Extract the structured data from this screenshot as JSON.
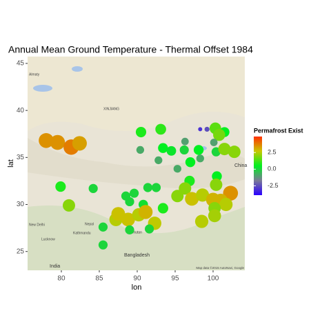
{
  "chart_data": {
    "type": "scatter",
    "title": "Annual Mean Ground Temperature - Thermal Offset   1984",
    "xlabel": "lon",
    "ylabel": "lat",
    "xlim": [
      75.55,
      104.18
    ],
    "ylim": [
      23.0,
      45.73
    ],
    "xticks": [
      80,
      85,
      90,
      95,
      100
    ],
    "yticks": [
      25,
      30,
      35,
      40,
      45
    ],
    "map_labels": [
      "XINJIANG",
      "Almaty",
      "Nepal",
      "Kathmandu",
      "New Delhi",
      "Lucknow",
      "Bhutan",
      "Bangladesh",
      "India",
      "China",
      "Map data ©2015 AutoNavi, Google"
    ],
    "colorbar": {
      "title": "Permafrost Exist",
      "lim": [
        -3.9,
        4.9
      ],
      "ticks": [
        2.5,
        {
          "value": 0,
          "label": "0.0"
        },
        -2.5
      ],
      "colors": [
        "#2a00ff",
        "#7a7a96",
        "#00f020",
        "#c8c800",
        "#ff3000"
      ]
    },
    "series": [
      {
        "name": "Thermal Offset",
        "x": [
          78.0,
          79.5,
          81.3,
          82.4,
          90.5,
          93.1,
          98.3,
          99.2,
          100.3,
          101.5,
          100.8,
          100.1,
          96.3,
          93.4,
          94.5,
          96.2,
          98.1,
          100.4,
          101.5,
          102.8,
          90.4,
          92.8,
          98.3,
          95.3,
          97.0,
          96.9,
          100.5,
          100.4,
          102.3,
          96.3,
          95.3,
          97.2,
          98.6,
          100.0,
          101.0,
          101.7,
          100.2,
          98.5,
          100.2,
          93.4,
          92.5,
          91.4,
          89.6,
          89.0,
          90.8,
          88.5,
          79.9,
          81.0,
          84.2,
          87.2,
          87.5,
          88.8,
          90.2,
          91.1,
          92.3,
          89.0,
          91.6,
          85.5,
          85.5
        ],
        "y": [
          36.8,
          36.6,
          36.1,
          36.5,
          37.7,
          38.0,
          38.0,
          38.0,
          38.1,
          37.7,
          37.4,
          36.6,
          36.7,
          36.0,
          35.7,
          35.8,
          35.8,
          35.6,
          35.9,
          35.6,
          35.8,
          34.7,
          34.9,
          33.8,
          34.5,
          32.5,
          33.0,
          32.1,
          31.2,
          31.7,
          30.9,
          30.6,
          31.0,
          30.5,
          30.4,
          30.0,
          29.6,
          28.2,
          28.8,
          29.6,
          31.8,
          31.8,
          31.2,
          30.3,
          30.0,
          30.9,
          31.9,
          29.9,
          31.7,
          28.4,
          29.0,
          28.4,
          28.9,
          29.2,
          28.0,
          27.3,
          27.4,
          27.6,
          25.7
        ],
        "values": [
          3.5,
          3.5,
          3.8,
          3.3,
          0.8,
          1.0,
          -3.0,
          -2.5,
          1.5,
          0.5,
          1.8,
          -1.0,
          -1.0,
          0.5,
          0.3,
          0.0,
          0.5,
          0.0,
          2.0,
          2.0,
          -0.8,
          -0.8,
          -0.8,
          -0.8,
          0.5,
          0.8,
          0.5,
          2.0,
          3.5,
          2.0,
          2.0,
          2.8,
          2.5,
          3.0,
          3.0,
          2.5,
          2.0,
          2.5,
          2.3,
          0.8,
          0.0,
          0.0,
          0.0,
          0.0,
          0.2,
          0.0,
          0.8,
          2.0,
          0.0,
          2.5,
          2.8,
          2.8,
          2.5,
          3.0,
          2.6,
          0.0,
          0.0,
          0.0,
          0.0
        ]
      }
    ]
  }
}
